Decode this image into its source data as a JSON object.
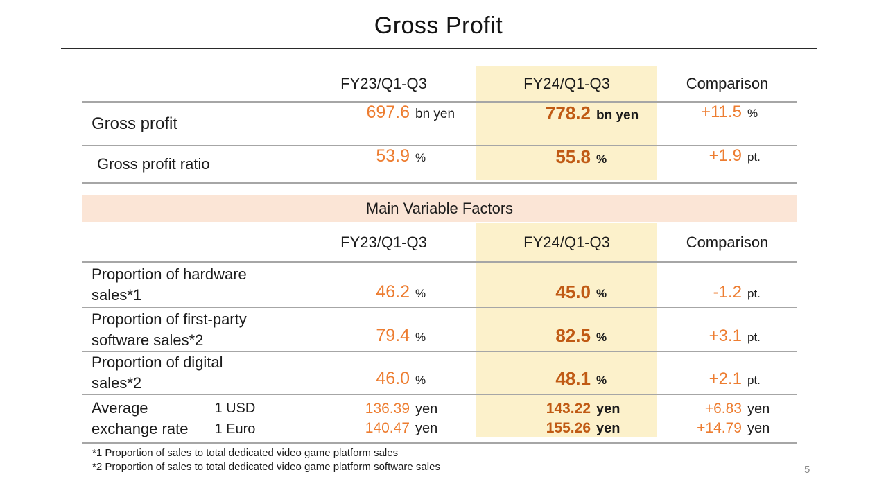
{
  "slide": {
    "title": "Gross Profit",
    "banner": "Main Variable Factors",
    "page_number": "5",
    "footnote1": "*1 Proportion of sales to total dedicated video game platform sales",
    "footnote2": "*2 Proportion of sales to total dedicated video game platform software sales",
    "colors": {
      "highlight_bg": "#FCF1CB",
      "banner_bg": "#FBE5D6",
      "orange": "#ED7D31",
      "dark_orange": "#C05A14",
      "line_gray": "#A6A6A6"
    }
  },
  "columns": {
    "fy23": "FY23/Q1-Q3",
    "fy24": "FY24/Q1-Q3",
    "comparison": "Comparison"
  },
  "profit_table": {
    "gross_profit": {
      "label": "Gross profit",
      "fy23_num": "697.6",
      "fy23_unit": "bn yen",
      "fy24_num": "778.2",
      "fy24_unit": "bn yen",
      "comp_num": "+11.5",
      "comp_unit": "%"
    },
    "gross_profit_ratio": {
      "label": "Gross profit ratio",
      "fy23_num": "53.9",
      "fy23_unit": "%",
      "fy24_num": "55.8",
      "fy24_unit": "%",
      "comp_num": "+1.9",
      "comp_unit": "pt."
    }
  },
  "factors_table": {
    "hardware": {
      "label1": "Proportion of hardware",
      "label2": "sales*1",
      "fy23_num": "46.2",
      "fy23_unit": "%",
      "fy24_num": "45.0",
      "fy24_unit": "%",
      "comp_num": "-1.2",
      "comp_unit": "pt."
    },
    "first_party": {
      "label1": "Proportion of first-party",
      "label2": "software sales*2",
      "fy23_num": "79.4",
      "fy23_unit": "%",
      "fy24_num": "82.5",
      "fy24_unit": "%",
      "comp_num": "+3.1",
      "comp_unit": "pt."
    },
    "digital": {
      "label1": "Proportion of digital",
      "label2": "sales*2",
      "fy23_num": "46.0",
      "fy23_unit": "%",
      "fy24_num": "48.1",
      "fy24_unit": "%",
      "comp_num": "+2.1",
      "comp_unit": "pt."
    },
    "exchange": {
      "label1": "Average",
      "label2": "exchange rate",
      "sub_usd": "1 USD",
      "sub_euro": "1 Euro",
      "fy23_usd_num": "136.39",
      "fy23_usd_unit": "yen",
      "fy23_euro_num": "140.47",
      "fy23_euro_unit": "yen",
      "fy24_usd_num": "143.22",
      "fy24_usd_unit": "yen",
      "fy24_euro_num": "155.26",
      "fy24_euro_unit": "yen",
      "comp_usd_num": "+6.83",
      "comp_usd_unit": "yen",
      "comp_euro_num": "+14.79",
      "comp_euro_unit": "yen"
    }
  }
}
